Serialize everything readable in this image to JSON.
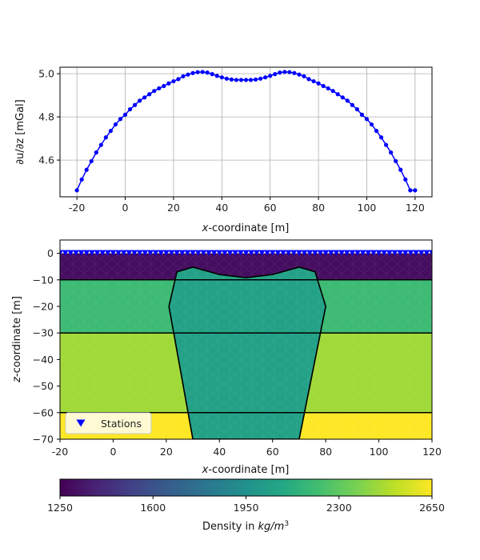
{
  "chart_data": [
    {
      "type": "line",
      "xlabel_italic": "x",
      "xlabel_rest": "-coordinate [m]",
      "ylabel": "∂u/∂z [mGal]",
      "xlim": [
        -27,
        127
      ],
      "ylim": [
        4.43,
        5.03
      ],
      "xticks": [
        -20,
        0,
        20,
        40,
        60,
        80,
        100,
        120
      ],
      "yticks": [
        4.6,
        4.8,
        5.0
      ],
      "ytick_labels": [
        "4.6",
        "4.8",
        "5.0"
      ],
      "grid": true,
      "color": "#0000ff",
      "series": [
        {
          "x": [
            -20,
            -18,
            -16,
            -14,
            -12,
            -10,
            -8,
            -6,
            -4,
            -2,
            0,
            2,
            4,
            6,
            8,
            10,
            12,
            14,
            16,
            18,
            20,
            22,
            24,
            26,
            28,
            30,
            32,
            34,
            36,
            38,
            40,
            42,
            44,
            46,
            48,
            50,
            52,
            54,
            56,
            58,
            60,
            62,
            64,
            66,
            68,
            70,
            72,
            74,
            76,
            78,
            80,
            82,
            84,
            86,
            88,
            90,
            92,
            94,
            96,
            98,
            100,
            102,
            104,
            106,
            108,
            110,
            112,
            114,
            116,
            118,
            120
          ],
          "y": [
            4.46,
            4.51,
            4.555,
            4.595,
            4.635,
            4.67,
            4.705,
            4.735,
            4.765,
            4.79,
            4.81,
            4.835,
            4.855,
            4.875,
            4.89,
            4.905,
            4.92,
            4.932,
            4.943,
            4.955,
            4.965,
            4.975,
            4.988,
            4.996,
            5.003,
            5.007,
            5.008,
            5.005,
            4.998,
            4.99,
            4.983,
            4.977,
            4.973,
            4.971,
            4.971,
            4.971,
            4.971,
            4.973,
            4.977,
            4.983,
            4.99,
            4.998,
            5.005,
            5.008,
            5.007,
            5.003,
            4.996,
            4.988,
            4.975,
            4.965,
            4.955,
            4.943,
            4.932,
            4.92,
            4.905,
            4.89,
            4.875,
            4.855,
            4.835,
            4.81,
            4.79,
            4.765,
            4.735,
            4.705,
            4.67,
            4.635,
            4.595,
            4.555,
            4.51,
            4.46,
            4.46
          ]
        }
      ]
    },
    {
      "type": "heatmap",
      "xlabel_italic": "x",
      "xlabel_rest": "-coordinate [m]",
      "ylabel_italic": "z",
      "ylabel_rest": "-coordinate [m]",
      "xlim": [
        -20,
        120
      ],
      "ylim": [
        -70,
        5
      ],
      "xticks": [
        -20,
        0,
        20,
        40,
        60,
        80,
        100,
        120
      ],
      "yticks": [
        0,
        -10,
        -20,
        -30,
        -40,
        -50,
        -60,
        -70
      ],
      "layers": [
        {
          "top": 0,
          "bottom": -10,
          "density": 1300
        },
        {
          "top": -10,
          "bottom": -30,
          "density": 2200
        },
        {
          "top": -30,
          "bottom": -60,
          "density": 2450
        },
        {
          "top": -60,
          "bottom": -70,
          "density": 2650
        }
      ],
      "layer_boundaries": [
        -10,
        -30,
        -60
      ],
      "anomaly": {
        "density": 2050,
        "outline": [
          [
            30,
            -70
          ],
          [
            21,
            -20
          ],
          [
            24,
            -7
          ],
          [
            30,
            -5.2
          ],
          [
            40,
            -8
          ],
          [
            50,
            -9.2
          ],
          [
            60,
            -8
          ],
          [
            70,
            -5.2
          ],
          [
            76,
            -7
          ],
          [
            80,
            -20
          ],
          [
            70,
            -70
          ]
        ]
      },
      "stations": {
        "x_from": -20,
        "x_to": 120,
        "step": 2,
        "z": 0,
        "marker_color": "#0000ff"
      },
      "legend": {
        "label": "Stations",
        "position": "lower-left"
      }
    }
  ],
  "colorbar": {
    "min": 1250,
    "max": 2650,
    "ticks": [
      1250,
      1600,
      1950,
      2300,
      2650
    ],
    "label_prefix": "Density in ",
    "label_unit": "kg/m",
    "label_exp": "3",
    "colormap": "viridis"
  }
}
